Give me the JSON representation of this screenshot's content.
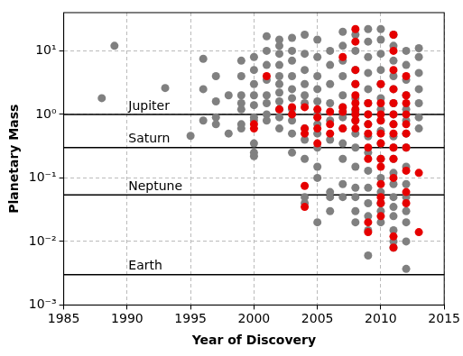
{
  "chart_data": {
    "type": "scatter",
    "x_label": "Year of Discovery",
    "y_label": "Planetary Mass",
    "log": "y",
    "grid": true,
    "xlim": [
      1985,
      2015
    ],
    "xticks": [
      1985,
      1990,
      1995,
      2000,
      2005,
      2010,
      2015
    ],
    "ylim": [
      0.001,
      40
    ],
    "yticks": [
      {
        "value": 0.001,
        "label": "10⁻³"
      },
      {
        "value": 0.01,
        "label": "10⁻²"
      },
      {
        "value": 0.1,
        "label": "10⁻¹"
      },
      {
        "value": 1,
        "label": "10⁰"
      },
      {
        "value": 10,
        "label": "10¹"
      }
    ],
    "reference_lines": [
      {
        "label": "Jupiter",
        "value": 1
      },
      {
        "label": "Saturn",
        "value": 0.3
      },
      {
        "label": "Neptune",
        "value": 0.054
      },
      {
        "label": "Earth",
        "value": 0.003
      }
    ],
    "series": [
      {
        "color": "#808080",
        "marker": "circle",
        "x": [
          1988,
          1989,
          1993,
          1995,
          1996,
          1996,
          1996,
          1997,
          1997,
          1997,
          1997,
          1998,
          1998,
          1999,
          1999,
          1999,
          1999,
          1999,
          1999,
          1999,
          2000,
          2000,
          2000,
          2000,
          2000,
          2000,
          2000,
          2000,
          2000,
          2000,
          2001,
          2001,
          2001,
          2001,
          2001,
          2001,
          2001,
          2001,
          2002,
          2002,
          2002,
          2002,
          2002,
          2002,
          2002,
          2002,
          2002,
          2002,
          2002,
          2003,
          2003,
          2003,
          2003,
          2003,
          2003,
          2003,
          2003,
          2003,
          2003,
          2004,
          2004,
          2004,
          2004,
          2004,
          2004,
          2004,
          2004,
          2004,
          2004,
          2004,
          2005,
          2005,
          2005,
          2005,
          2005,
          2005,
          2005,
          2005,
          2005,
          2005,
          2005,
          2005,
          2006,
          2006,
          2006,
          2006,
          2006,
          2006,
          2006,
          2006,
          2006,
          2007,
          2007,
          2007,
          2007,
          2007,
          2007,
          2007,
          2007,
          2007,
          2007,
          2007,
          2007,
          2008,
          2008,
          2008,
          2008,
          2008,
          2008,
          2008,
          2008,
          2008,
          2008,
          2008,
          2008,
          2008,
          2008,
          2009,
          2009,
          2009,
          2009,
          2009,
          2009,
          2009,
          2009,
          2009,
          2009,
          2009,
          2009,
          2009,
          2009,
          2009,
          2009,
          2010,
          2010,
          2010,
          2010,
          2010,
          2010,
          2010,
          2010,
          2010,
          2010,
          2010,
          2010,
          2010,
          2010,
          2010,
          2010,
          2011,
          2011,
          2011,
          2011,
          2011,
          2011,
          2011,
          2011,
          2011,
          2011,
          2011,
          2011,
          2011,
          2011,
          2011,
          2011,
          2011,
          2011,
          2011,
          2012,
          2012,
          2012,
          2012,
          2012,
          2012,
          2012,
          2012,
          2012,
          2012,
          2012,
          2012,
          2012,
          2012,
          2012,
          2013,
          2013,
          2013,
          2013,
          2013,
          2013,
          2013
        ],
        "values": [
          1.8,
          12,
          2.6,
          0.46,
          7.5,
          2.5,
          0.8,
          4,
          1.6,
          0.9,
          0.7,
          2,
          0.5,
          7,
          4,
          2,
          1.5,
          1.2,
          0.7,
          0.6,
          8,
          5,
          3,
          2,
          1.4,
          0.9,
          0.8,
          0.35,
          0.25,
          0.22,
          17,
          10,
          6,
          3.5,
          2,
          1.5,
          1,
          0.8,
          15,
          12,
          9,
          6,
          4,
          3,
          2.2,
          1.6,
          1.2,
          0.9,
          0.6,
          16,
          10,
          7,
          4,
          2.5,
          1.8,
          1.2,
          0.8,
          0.5,
          0.25,
          18,
          9,
          5,
          3,
          2,
          1.5,
          0.6,
          0.4,
          0.2,
          0.05,
          0.04,
          15,
          8,
          4,
          2.5,
          1.6,
          1,
          0.7,
          0.5,
          0.3,
          0.15,
          0.1,
          0.02,
          10,
          6,
          3,
          1.5,
          0.8,
          0.4,
          0.06,
          0.05,
          0.03,
          20,
          12,
          7,
          4,
          2,
          1.3,
          0.9,
          0.6,
          0.35,
          0.2,
          0.08,
          0.05,
          18,
          10,
          5,
          3,
          1.8,
          1.1,
          0.8,
          0.5,
          0.3,
          0.15,
          0.07,
          0.05,
          0.03,
          0.02,
          22,
          14,
          8,
          4.5,
          2.5,
          1.5,
          1,
          0.7,
          0.45,
          0.25,
          0.13,
          0.07,
          0.04,
          0.025,
          0.015,
          0.006,
          22,
          15,
          9,
          5,
          3,
          1.8,
          1.2,
          0.8,
          0.55,
          0.35,
          0.2,
          0.1,
          0.06,
          0.04,
          0.03,
          0.02,
          18,
          12,
          7,
          4,
          2.5,
          1.5,
          1,
          0.7,
          0.45,
          0.3,
          0.2,
          0.12,
          0.08,
          0.05,
          0.035,
          0.025,
          0.015,
          0.01,
          0.008,
          10,
          6,
          3.5,
          2,
          1.2,
          0.8,
          0.5,
          0.3,
          0.15,
          0.08,
          0.05,
          0.03,
          0.02,
          0.01,
          0.0037,
          11,
          8,
          4.5,
          2.5,
          1.5,
          0.9,
          0.6
        ]
      },
      {
        "color": "#e60000",
        "marker": "circle",
        "x": [
          2000,
          2000,
          2001,
          2002,
          2003,
          2003,
          2004,
          2004,
          2004,
          2004,
          2004,
          2005,
          2005,
          2005,
          2005,
          2006,
          2006,
          2006,
          2007,
          2007,
          2007,
          2007,
          2008,
          2008,
          2008,
          2008,
          2008,
          2008,
          2008,
          2008,
          2008,
          2008,
          2009,
          2009,
          2009,
          2009,
          2009,
          2009,
          2009,
          2009,
          2010,
          2010,
          2010,
          2010,
          2010,
          2010,
          2010,
          2010,
          2010,
          2010,
          2010,
          2010,
          2011,
          2011,
          2011,
          2011,
          2011,
          2011,
          2011,
          2011,
          2011,
          2011,
          2011,
          2011,
          2011,
          2012,
          2012,
          2012,
          2012,
          2012,
          2012,
          2012,
          2012,
          2012,
          2012,
          2013,
          2013
        ],
        "values": [
          0.7,
          0.6,
          4,
          1.2,
          1.3,
          1.0,
          1.3,
          0.6,
          0.5,
          0.075,
          0.035,
          1.2,
          0.9,
          0.6,
          0.35,
          1.1,
          0.7,
          0.5,
          8,
          1.3,
          1.1,
          0.6,
          22,
          14,
          5,
          3,
          2,
          1.5,
          1.2,
          1,
          0.8,
          0.6,
          1.5,
          1,
          0.7,
          0.5,
          0.3,
          0.2,
          0.02,
          0.014,
          3,
          1.5,
          1,
          0.8,
          0.5,
          0.35,
          0.2,
          0.15,
          0.08,
          0.05,
          0.04,
          0.025,
          18,
          10,
          5,
          2.5,
          1.5,
          1,
          0.7,
          0.5,
          0.3,
          0.2,
          0.1,
          0.012,
          0.008,
          4,
          2,
          1.5,
          1,
          0.7,
          0.5,
          0.3,
          0.13,
          0.06,
          0.04,
          0.12,
          0.014
        ]
      }
    ]
  }
}
